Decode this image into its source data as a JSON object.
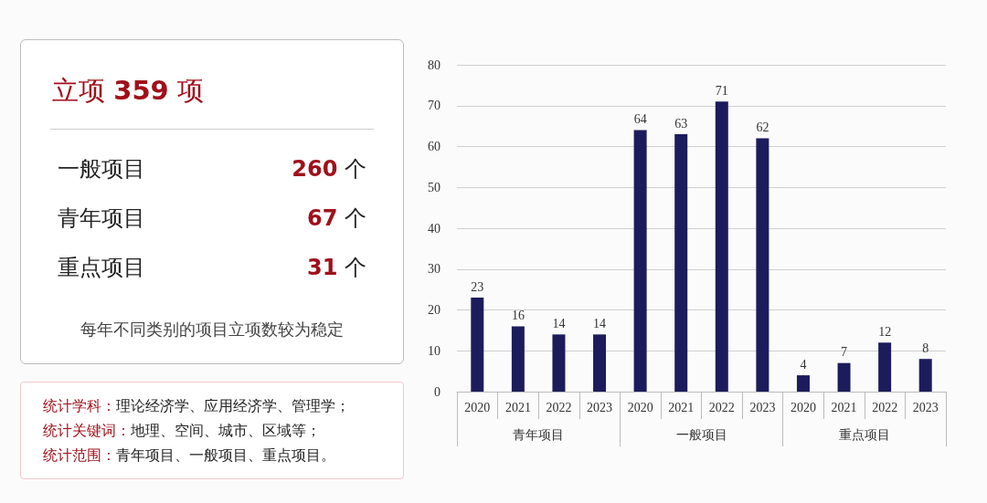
{
  "chart_data": [
    {
      "type": "other",
      "title": "立项 359 项",
      "annotations": [
        "一般项目",
        "260 个",
        "青年项目",
        "67 个",
        "重点项目",
        "31 个",
        "每年不同类别的项目立项数较为稳定"
      ]
    },
    {
      "type": "other",
      "annotations": [
        "统计学科：理论经济学、应用经济学、管理学；",
        "统计关键词：地理、空间、城市、区域等；",
        "统计范围：青年项目、一般项目、重点项目。"
      ]
    },
    {
      "type": "bar",
      "categories": [
        "2020",
        "2021",
        "2022",
        "2023",
        "2020",
        "2021",
        "2022",
        "2023",
        "2020",
        "2021",
        "2022",
        "2023"
      ],
      "values": [
        23,
        16,
        14,
        14,
        64,
        63,
        71,
        62,
        4,
        7,
        12,
        8
      ],
      "color": "#1c1c5c",
      "annotations": [
        "青年项目",
        "一般项目",
        "重点项目"
      ],
      "ylim": [
        0,
        80
      ],
      "yticks": [
        0,
        10,
        20,
        30,
        40,
        50,
        60,
        70,
        80
      ],
      "grid": "y",
      "data_labels": true
    }
  ]
}
